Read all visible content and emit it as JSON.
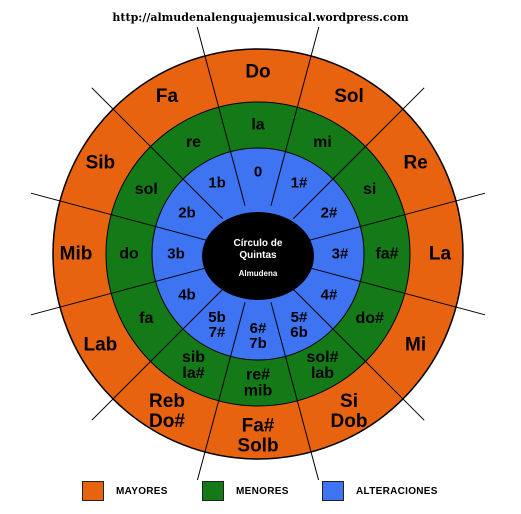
{
  "url": "http://almudenalenguajemusical.wordpress.com",
  "colors": {
    "major": "#e8630f",
    "minor": "#147a18",
    "alter": "#3e74f2",
    "center": "#000000",
    "lines": "#000000"
  },
  "center": {
    "title": "Círculo de Quintas",
    "author": "Almudena"
  },
  "sectors": [
    {
      "major": [
        "Do"
      ],
      "minor": [
        "la"
      ],
      "alter": [
        "0"
      ]
    },
    {
      "major": [
        "Sol"
      ],
      "minor": [
        "mi"
      ],
      "alter": [
        "1#"
      ]
    },
    {
      "major": [
        "Re"
      ],
      "minor": [
        "si"
      ],
      "alter": [
        "2#"
      ]
    },
    {
      "major": [
        "La"
      ],
      "minor": [
        "fa#"
      ],
      "alter": [
        "3#"
      ]
    },
    {
      "major": [
        "Mi"
      ],
      "minor": [
        "do#"
      ],
      "alter": [
        "4#"
      ]
    },
    {
      "major": [
        "Si",
        "Dob"
      ],
      "minor": [
        "sol#",
        "lab"
      ],
      "alter": [
        "5#",
        "6b"
      ]
    },
    {
      "major": [
        "Fa#",
        "Solb"
      ],
      "minor": [
        "re#",
        "mib"
      ],
      "alter": [
        "6#",
        "7b"
      ]
    },
    {
      "major": [
        "Reb",
        "Do#"
      ],
      "minor": [
        "sib",
        "la#"
      ],
      "alter": [
        "5b",
        "7#"
      ]
    },
    {
      "major": [
        "Lab"
      ],
      "minor": [
        "fa"
      ],
      "alter": [
        "4b"
      ]
    },
    {
      "major": [
        "Mib"
      ],
      "minor": [
        "do"
      ],
      "alter": [
        "3b"
      ]
    },
    {
      "major": [
        "Sib"
      ],
      "minor": [
        "sol"
      ],
      "alter": [
        "2b"
      ]
    },
    {
      "major": [
        "Fa"
      ],
      "minor": [
        "re"
      ],
      "alter": [
        "1b"
      ]
    }
  ],
  "legend": [
    {
      "label": "MAYORES",
      "color": "#e8630f"
    },
    {
      "label": "MENORES",
      "color": "#147a18"
    },
    {
      "label": "ALTERACIONES",
      "color": "#3e74f2"
    }
  ]
}
